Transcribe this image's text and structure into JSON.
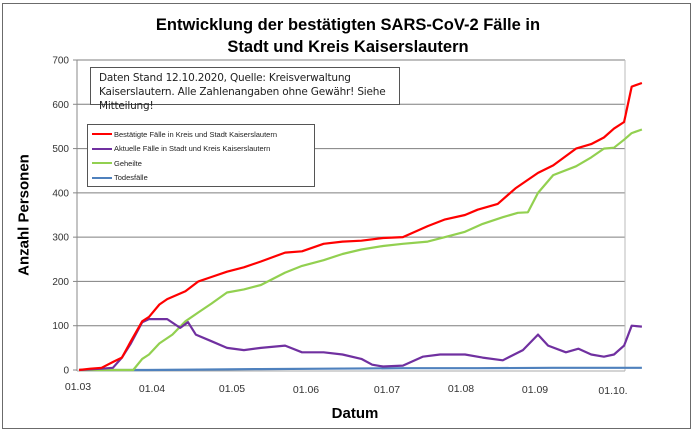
{
  "chart_data": {
    "type": "line",
    "title": "Entwicklung der bestätigten SARS-CoV-2 Fälle in Stadt und Kreis Kaiserslautern",
    "title_lines": [
      "Entwicklung der bestätigten SARS-CoV-2 Fälle in",
      "Stadt und Kreis Kaiserslautern"
    ],
    "xlabel": "Datum",
    "ylabel": "Anzahl Personen",
    "ylim": [
      0,
      700
    ],
    "yticks": [
      "0",
      "100",
      "200",
      "300",
      "400",
      "500",
      "600",
      "700"
    ],
    "xticks": [
      "01.03",
      "01.04",
      "01.05",
      "01.06",
      "01.07",
      "01.08",
      "01.09",
      "01.10."
    ],
    "grid": "horizontal",
    "legend_position": "upper left (inside plot)",
    "annotation": "Daten Stand 12.10.2020, Quelle: Kreisverwaltung Kaiserslautern. Alle Zahlenangaben ohne Gewähr! Siehe Mitteilung!",
    "x_unit": "days since 01.03.2020",
    "series": [
      {
        "name": "Bestätigte Fälle in Kreis und Stadt Kaiserslautern",
        "color": "#ff0000",
        "x": [
          0,
          5,
          10,
          15,
          19,
          23,
          28,
          31,
          35,
          38,
          45,
          50,
          55,
          61,
          68,
          75,
          85,
          92,
          100,
          107,
          114,
          122,
          130,
          140,
          147,
          155,
          160,
          168,
          175,
          184,
          190,
          199,
          205,
          210,
          214,
          218,
          221,
          225
        ],
        "values": [
          0,
          3,
          5,
          18,
          28,
          65,
          110,
          120,
          148,
          160,
          178,
          200,
          210,
          222,
          232,
          245,
          265,
          268,
          285,
          290,
          292,
          298,
          300,
          325,
          340,
          350,
          362,
          375,
          410,
          445,
          462,
          500,
          510,
          525,
          545,
          560,
          640,
          648
        ]
      },
      {
        "name": "Aktuelle Fälle in Stadt und Kreis Kaiserslautern",
        "color": "#7030a0",
        "x": [
          0,
          10,
          15,
          19,
          23,
          28,
          31,
          38,
          43,
          46,
          49,
          55,
          61,
          68,
          75,
          85,
          92,
          100,
          107,
          114,
          118,
          122,
          130,
          138,
          145,
          155,
          162,
          170,
          178,
          184,
          188,
          195,
          200,
          205,
          210,
          214,
          218,
          221,
          225
        ],
        "values": [
          0,
          3,
          5,
          28,
          60,
          108,
          115,
          115,
          95,
          108,
          80,
          65,
          50,
          45,
          50,
          55,
          40,
          40,
          35,
          25,
          12,
          8,
          10,
          30,
          35,
          35,
          28,
          22,
          45,
          80,
          55,
          40,
          48,
          35,
          30,
          35,
          55,
          100,
          98
        ]
      },
      {
        "name": "Geheilte",
        "color": "#92d050",
        "x": [
          0,
          24,
          28,
          31,
          35,
          40,
          45,
          50,
          55,
          61,
          68,
          75,
          85,
          92,
          100,
          107,
          114,
          122,
          130,
          140,
          147,
          155,
          162,
          170,
          176,
          180,
          184,
          190,
          199,
          205,
          210,
          214,
          218,
          221,
          225
        ],
        "values": [
          0,
          0,
          25,
          35,
          60,
          80,
          110,
          130,
          150,
          175,
          182,
          192,
          220,
          235,
          248,
          262,
          272,
          280,
          285,
          290,
          300,
          312,
          330,
          345,
          355,
          356,
          400,
          440,
          460,
          480,
          500,
          502,
          520,
          535,
          543
        ]
      },
      {
        "name": "Todesfälle",
        "color": "#4f81bd",
        "x": [
          0,
          30,
          50,
          75,
          100,
          130,
          160,
          190,
          225
        ],
        "values": [
          0,
          0,
          1,
          2,
          3,
          4,
          4,
          5,
          5
        ]
      }
    ]
  },
  "note": {
    "line1": "Daten Stand 12.10.2020, Quelle: Kreisverwaltung",
    "line2": "Kaiserslautern. Alle Zahlenangaben ohne Gewähr! Siehe Mitteilung!"
  },
  "legend": [
    {
      "label": "Bestätigte Fälle in Kreis und Stadt Kaiserslautern",
      "color": "#ff0000"
    },
    {
      "label": "Aktuelle Fälle in Stadt und Kreis Kaiserslautern",
      "color": "#7030a0"
    },
    {
      "label": "Geheilte",
      "color": "#92d050"
    },
    {
      "label": "Todesfälle",
      "color": "#4f81bd"
    }
  ]
}
